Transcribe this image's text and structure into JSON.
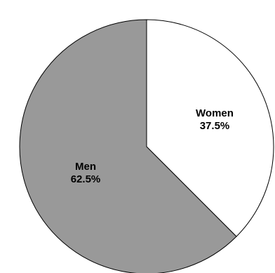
{
  "chart_data": {
    "type": "pie",
    "title": "",
    "slices": [
      {
        "label": "Women",
        "value": 37.5,
        "value_text": "37.5%",
        "color": "#ffffff"
      },
      {
        "label": "Men",
        "value": 62.5,
        "value_text": "62.5%",
        "color": "#999999"
      }
    ],
    "start_angle": "12 o'clock",
    "direction": "clockwise",
    "legend": "none"
  }
}
